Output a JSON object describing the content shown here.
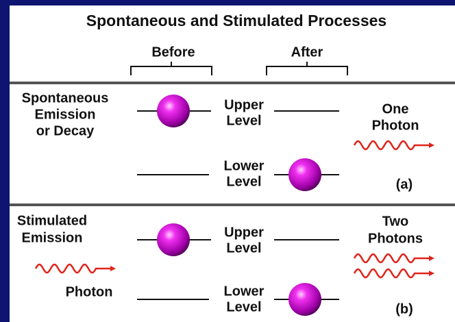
{
  "title": "Spontaneous and Stimulated Processes",
  "columns": [
    "Before",
    "After"
  ],
  "sections": [
    {
      "label": [
        "Spontaneous",
        "Emission",
        "or Decay"
      ],
      "upper_level": [
        "Upper",
        "Level"
      ],
      "lower_level": [
        "Lower",
        "Level"
      ],
      "photons": [
        "One",
        "Photon"
      ],
      "tag": "(a)"
    },
    {
      "label": [
        "Stimulated",
        "Emission"
      ],
      "incoming": "Photon",
      "upper_level": [
        "Upper",
        "Level"
      ],
      "lower_level": [
        "Lower",
        "Level"
      ],
      "photons": [
        "Two",
        "Photons"
      ],
      "tag": "(b)"
    }
  ]
}
